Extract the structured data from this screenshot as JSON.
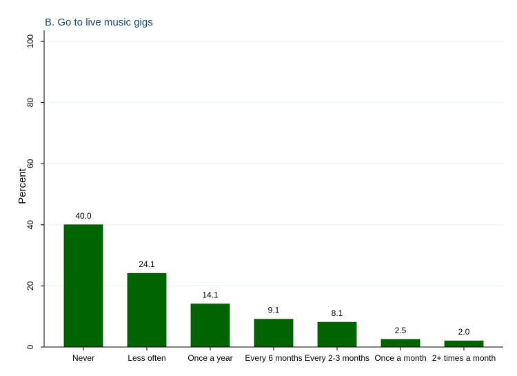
{
  "chart_data": {
    "type": "bar",
    "title": "B. Go to live music gigs",
    "ylabel": "Percent",
    "xlabel": "",
    "ylim": [
      0,
      100
    ],
    "yticks": [
      0,
      20,
      40,
      60,
      80,
      100
    ],
    "grid": true,
    "bar_color": "#006400",
    "categories": [
      "Never",
      "Less often",
      "Once a year",
      "Every 6 months",
      "Every 2-3 months",
      "Once a month",
      "2+ times a month"
    ],
    "values": [
      40.0,
      24.1,
      14.1,
      9.1,
      8.1,
      2.5,
      2.0
    ],
    "data_labels": [
      "40.0",
      "24.1",
      "14.1",
      "9.1",
      "8.1",
      "2.5",
      "2.0"
    ]
  }
}
